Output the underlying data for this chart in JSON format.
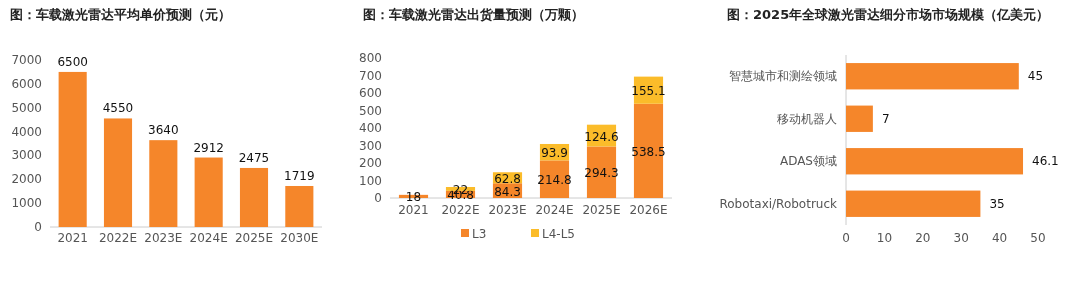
{
  "chart_data": [
    {
      "type": "bar",
      "title": "图：车载激光雷达平均单价预测（元）",
      "categories": [
        "2021",
        "2022E",
        "2023E",
        "2024E",
        "2025E",
        "2030E"
      ],
      "values": [
        6500,
        4550,
        3640,
        2912,
        2475,
        1719
      ],
      "color": "#f5862a",
      "ylim": [
        0,
        7000
      ],
      "yticks": [
        0,
        1000,
        2000,
        3000,
        4000,
        5000,
        6000,
        7000
      ],
      "data_labels": true,
      "grid": false
    },
    {
      "type": "bar",
      "title": "图：车载激光雷达出货量预测（万颗）",
      "categories": [
        "2021",
        "2022E",
        "2023E",
        "2024E",
        "2025E",
        "2026E"
      ],
      "stacked": true,
      "series": [
        {
          "name": "L3",
          "color": "#f5862a",
          "values": [
            18,
            40.8,
            84.3,
            214.8,
            294.3,
            538.5
          ]
        },
        {
          "name": "L4-L5",
          "color": "#fbbc2a",
          "values": [
            null,
            22,
            62.8,
            93.9,
            124.6,
            155.1
          ]
        }
      ],
      "ylim": [
        0,
        800
      ],
      "yticks": [
        0,
        100,
        200,
        300,
        400,
        500,
        600,
        700,
        800
      ],
      "data_labels": true,
      "legend": "bottom",
      "grid": false
    },
    {
      "type": "bar",
      "orientation": "horizontal",
      "title": "图：2025年全球激光雷达细分市场市场规模（亿美元）",
      "categories": [
        "智慧城市和测绘领域",
        "移动机器人",
        "ADAS领域",
        "Robotaxi/Robotruck"
      ],
      "values": [
        45,
        7,
        46.1,
        35
      ],
      "color": "#f5862a",
      "xlim": [
        0,
        50
      ],
      "xticks": [
        0,
        10,
        20,
        30,
        40,
        50
      ],
      "data_labels": true,
      "grid": false
    }
  ]
}
